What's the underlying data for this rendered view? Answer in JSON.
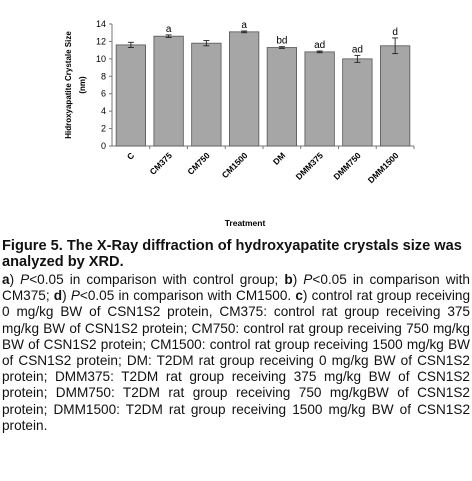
{
  "chart_data": {
    "type": "bar",
    "categories": [
      "C",
      "CM375",
      "CM750",
      "CM1500",
      "DM",
      "DMM375",
      "DMM750",
      "DMM1500"
    ],
    "values": [
      11.6,
      12.6,
      11.8,
      13.1,
      11.3,
      10.8,
      10.0,
      11.5
    ],
    "errors": [
      0.3,
      0.15,
      0.3,
      0.1,
      0.1,
      0.1,
      0.4,
      0.9
    ],
    "significance": [
      "",
      "a",
      "",
      "a",
      "bd",
      "ad",
      "ad",
      "d"
    ],
    "ylabel": "Hidroxyapatite Crystale Size (nm)",
    "xlabel": "Treatment",
    "ylim": [
      0,
      14
    ],
    "yticks": [
      0,
      2,
      4,
      6,
      8,
      10,
      12,
      14
    ],
    "grid": false,
    "bar_color": "#a6a6a6",
    "bar_edge_color": "#555555"
  },
  "caption": {
    "title": "Figure 5. The X-Ray diffraction of hydroxyapatite crystals size was analyzed by XRD.",
    "body": [
      {
        "t": "a",
        "b": true
      },
      {
        "t": ") "
      },
      {
        "t": "P",
        "i": true
      },
      {
        "t": "<0.05 in comparison with control group; "
      },
      {
        "t": "b",
        "b": true
      },
      {
        "t": ") "
      },
      {
        "t": "P",
        "i": true
      },
      {
        "t": "<0.05 in comparison with CM375; "
      },
      {
        "t": "d",
        "b": true
      },
      {
        "t": ") "
      },
      {
        "t": "P",
        "i": true
      },
      {
        "t": "<0.05 in comparison with CM1500. "
      },
      {
        "t": "c",
        "b": true
      },
      {
        "t": ") control rat group receiving 0 mg/kg BW of CSN1S2 protein, CM375: control rat group receiving 375 mg/kg BW of CSN1S2 protein; CM750: control rat group receiving 750 mg/kg BW of CSN1S2 protein; CM1500: control rat group receiving 1500 mg/kg BW of CSN1S2 protein; DM: T2DM rat group receiving 0 mg/kg BW of CSN1S2 protein; DMM375: T2DM rat group receiving 375 mg/kg BW of CSN1S2 protein; DMM750: T2DM rat group receiving 750 mg/kgBW of CSN1S2 protein; DMM1500: T2DM rat group receiving 1500 mg/kg BW of CSN1S2 protein."
      }
    ]
  }
}
